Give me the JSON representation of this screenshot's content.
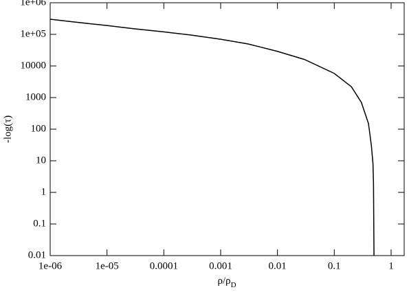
{
  "chart_data": {
    "type": "line",
    "xlabel": "ρ/ρ",
    "xlabel_subscript": "D",
    "ylabel": "-log(τ)",
    "xscale": "log",
    "yscale": "log",
    "xlim": [
      1e-06,
      1.7
    ],
    "ylim": [
      0.01,
      1000000
    ],
    "xticks": [
      {
        "value": 1e-06,
        "label": "1e-06"
      },
      {
        "value": 1e-05,
        "label": "1e-05"
      },
      0.0001,
      0.001,
      0.01,
      0.1,
      1
    ],
    "yticks": [
      0.01,
      0.1,
      1,
      10,
      100,
      1000,
      10000,
      {
        "value": 100000,
        "label": "1e+05"
      },
      {
        "value": 1000000,
        "label": "1e+06"
      }
    ],
    "x": [
      1e-06,
      3e-06,
      1e-05,
      3e-05,
      0.0001,
      0.0003,
      0.001,
      0.003,
      0.01,
      0.03,
      0.1,
      0.2,
      0.3,
      0.4,
      0.45,
      0.48,
      0.49,
      0.5
    ],
    "series": [
      {
        "color": "#000000",
        "values": [
          300000,
          240000,
          190000,
          150000,
          120000,
          95000,
          70000,
          50000,
          29000,
          16000,
          5800,
          2200,
          700,
          150,
          30,
          8,
          2,
          0.01
        ]
      }
    ]
  }
}
